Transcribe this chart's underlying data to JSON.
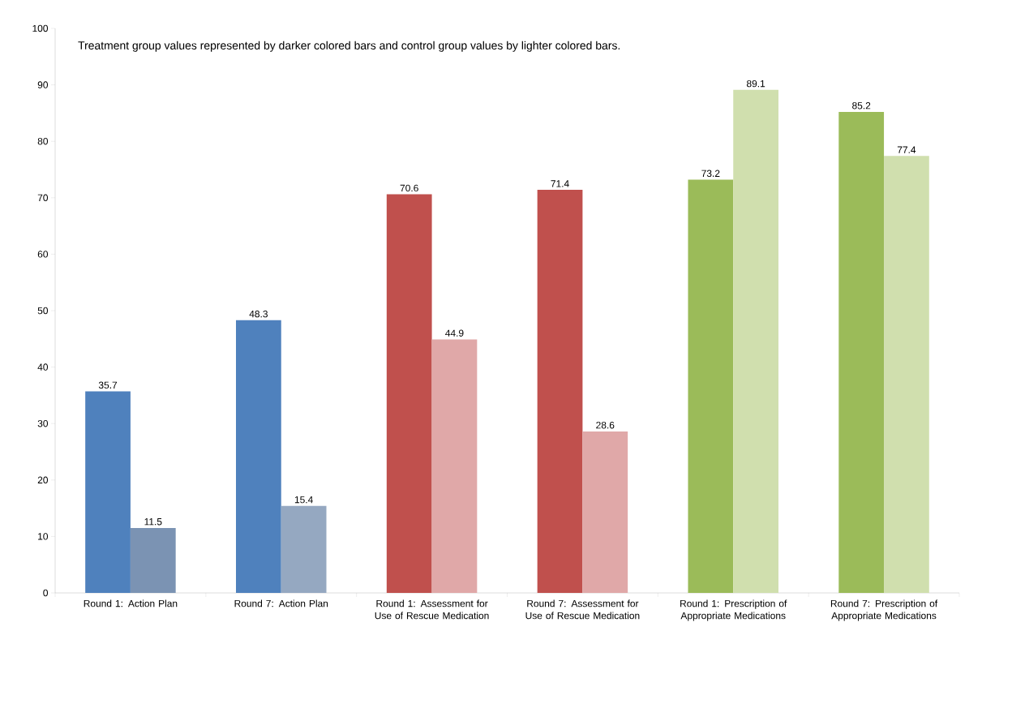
{
  "chart_data": {
    "type": "bar",
    "categories": [
      "Round 1: Action Plan",
      "Round 7: Action Plan",
      "Round 1: Assessment for Use of Rescue Medication",
      "Round 7: Assessment for Use of Rescue Medication",
      "Round 1: Prescription of Appropriate Medications",
      "Round 7: Prescription of Appropriate Medications"
    ],
    "series": [
      {
        "values": [
          35.7,
          48.3,
          70.6,
          71.4,
          73.2,
          85.2
        ],
        "colors": [
          "#4f81bd",
          "#4f81bd",
          "#c0504d",
          "#c0504d",
          "#9bbb59",
          "#9bbb59"
        ]
      },
      {
        "values": [
          11.5,
          15.4,
          44.9,
          28.6,
          89.1,
          77.4
        ],
        "colors": [
          "#7b93b3",
          "#95a8c1",
          "#e0a8a8",
          "#e0a8a8",
          "#d0dfae",
          "#d0dfae"
        ]
      }
    ],
    "ylim": [
      0,
      100
    ],
    "yticks": [
      0,
      10,
      20,
      30,
      40,
      50,
      60,
      70,
      80,
      90,
      100
    ],
    "data_labels": true,
    "grid": false,
    "annotations": [
      "Treatment group values represented by darker colored bars and control group values by lighter colored bars."
    ]
  }
}
